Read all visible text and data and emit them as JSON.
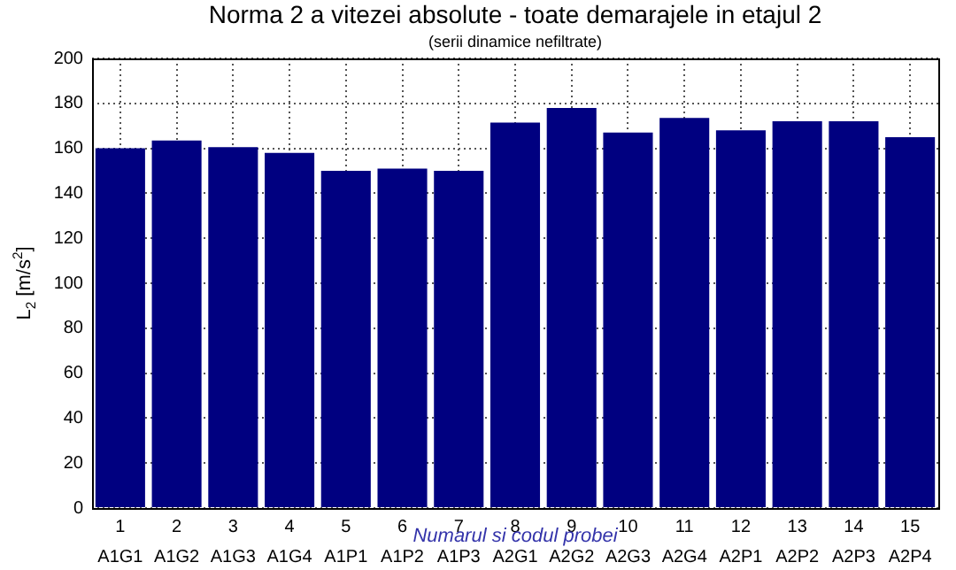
{
  "chart_data": {
    "type": "bar",
    "title": "Norma 2 a vitezei absolute - toate demarajele in etajul 2",
    "subtitle": "(serii dinamice nefiltrate)",
    "xlabel": "Numarul si codul probei",
    "ylabel": "L$_{2}$ [m/s$^{2}$]",
    "categories": [
      "1\nA1G1",
      "2\nA1G2",
      "3\nA1G3",
      "4\nA1G4",
      "5\nA1P1",
      "6\nA1P2",
      "7\nA1P3",
      "8\nA2G1",
      "9\nA2G2",
      "10\nA2G3",
      "11\nA2G4",
      "12\nA2P1",
      "13\nA2P2",
      "14\nA2P3",
      "15\nA2P4"
    ],
    "values": [
      160,
      163.5,
      160.5,
      158,
      150,
      151,
      150,
      171.5,
      178,
      167,
      173.5,
      168,
      172,
      172,
      165
    ],
    "color": "#000080",
    "ylim": [
      0,
      200
    ],
    "yticks": [
      0,
      20,
      40,
      60,
      80,
      100,
      120,
      140,
      160,
      180,
      200
    ],
    "grid": true,
    "legend": false
  }
}
